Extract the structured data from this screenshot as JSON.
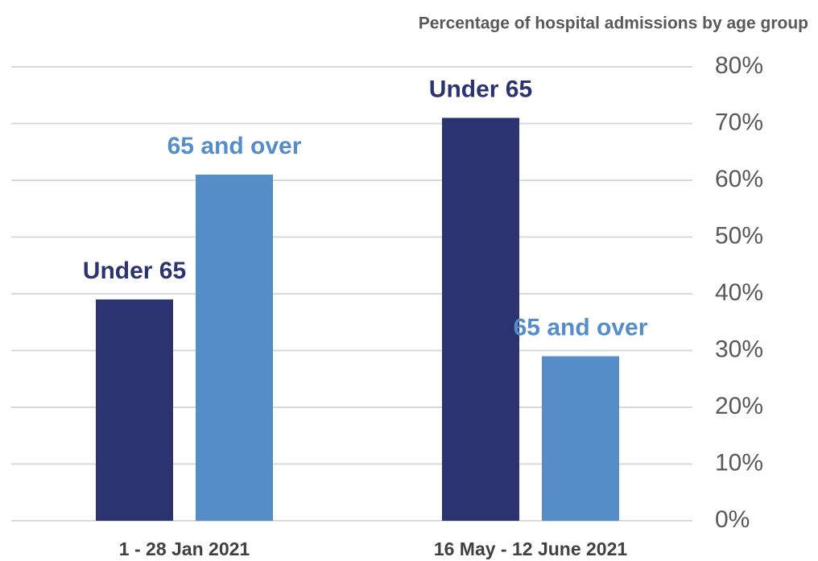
{
  "chart_data": {
    "type": "bar",
    "title": "Percentage of hospital admissions by age group",
    "categories": [
      "1 - 28 Jan 2021",
      "16 May - 12 June 2021"
    ],
    "series": [
      {
        "name": "Under 65",
        "color": "#2b3470",
        "values": [
          39,
          71
        ]
      },
      {
        "name": "65 and over",
        "color": "#548dc8",
        "values": [
          61,
          29
        ]
      }
    ],
    "ylim": [
      0,
      80
    ],
    "yticks": [
      {
        "value": 0,
        "label": "0%"
      },
      {
        "value": 10,
        "label": "10%"
      },
      {
        "value": 20,
        "label": "20%"
      },
      {
        "value": 30,
        "label": "30%"
      },
      {
        "value": 40,
        "label": "40%"
      },
      {
        "value": 50,
        "label": "50%"
      },
      {
        "value": 60,
        "label": "60%"
      },
      {
        "value": 70,
        "label": "70%"
      },
      {
        "value": 80,
        "label": "80%"
      }
    ],
    "grid": true
  }
}
